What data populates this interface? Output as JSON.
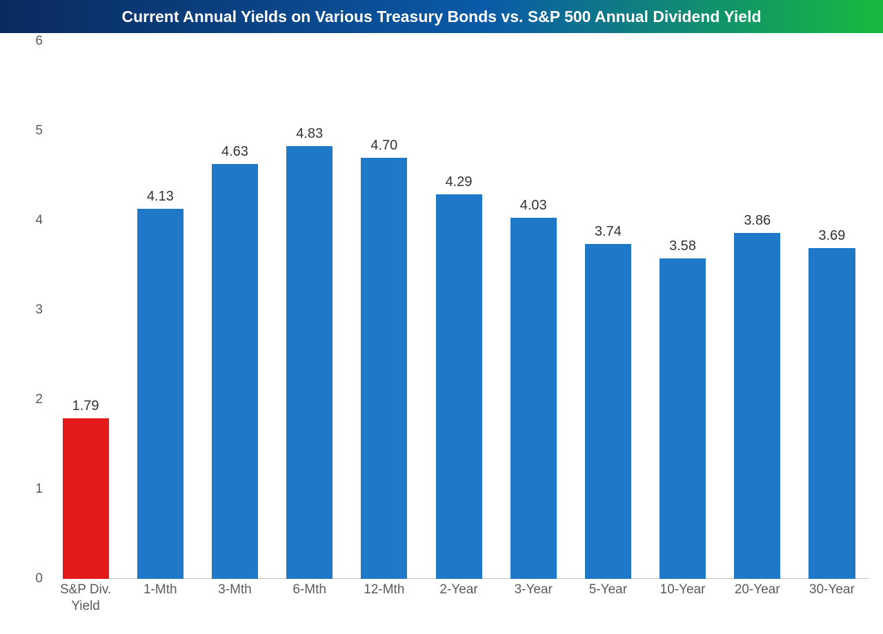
{
  "chart": {
    "type": "bar",
    "title": "Current Annual Yields on Various Treasury Bonds vs. S&P 500 Annual Dividend Yield",
    "title_fontsize": 23,
    "title_color": "#ffffff",
    "title_bg_gradient": {
      "from": "#0a2a5e",
      "mid": "#0a5aa8",
      "to": "#17ba3f"
    },
    "background_color": "#ffffff",
    "ylim": [
      0,
      6
    ],
    "ytick_step": 1,
    "yticks": [
      0,
      1,
      2,
      3,
      4,
      5,
      6
    ],
    "axis_label_color": "#5a5a5a",
    "axis_label_fontsize": 19,
    "value_label_color": "#333333",
    "value_label_fontsize": 20,
    "bar_width_ratio": 0.62,
    "baseline_color": "#bfbfbf",
    "categories": [
      "S&P Div.\nYield",
      "1-Mth",
      "3-Mth",
      "6-Mth",
      "12-Mth",
      "2-Year",
      "3-Year",
      "5-Year",
      "10-Year",
      "20-Year",
      "30-Year"
    ],
    "values": [
      1.79,
      4.13,
      4.63,
      4.83,
      4.7,
      4.29,
      4.03,
      3.74,
      3.58,
      3.86,
      3.69
    ],
    "bar_colors": [
      "#e31b1b",
      "#1f78c8",
      "#1f78c8",
      "#1f78c8",
      "#1f78c8",
      "#1f78c8",
      "#1f78c8",
      "#1f78c8",
      "#1f78c8",
      "#1f78c8",
      "#1f78c8"
    ]
  }
}
